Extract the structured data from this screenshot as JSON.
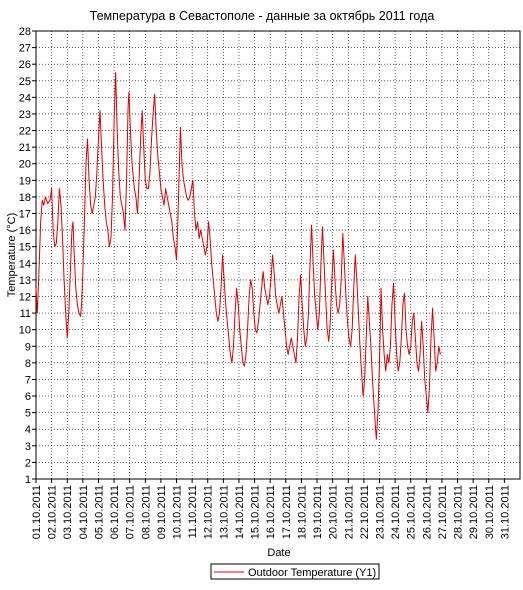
{
  "chart_data": {
    "type": "line",
    "title": "Температура в Севастополе - данные за октябрь 2011 года",
    "xlabel": "Date",
    "ylabel": "Temperature (°C)",
    "ylim": [
      1,
      28
    ],
    "xlim": [
      "01.10.2011",
      "31.10.2011 23:59"
    ],
    "grid": true,
    "legend_position": "bottom-center",
    "y_ticks": [
      1,
      2,
      3,
      4,
      5,
      6,
      7,
      8,
      9,
      10,
      11,
      12,
      13,
      14,
      15,
      16,
      17,
      18,
      19,
      20,
      21,
      22,
      23,
      24,
      25,
      26,
      27,
      28
    ],
    "x_tick_labels": [
      "01.10.2011",
      "02.10.2011",
      "03.10.2011",
      "04.10.2011",
      "05.10.2011",
      "06.10.2011",
      "07.10.2011",
      "08.10.2011",
      "09.10.2011",
      "10.10.2011",
      "11.10.2011",
      "12.10.2011",
      "13.10.2011",
      "14.10.2011",
      "15.10.2011",
      "16.10.2011",
      "17.10.2011",
      "18.10.2011",
      "19.10.2011",
      "20.10.2011",
      "21.10.2011",
      "22.10.2011",
      "23.10.2011",
      "24.10.2011",
      "25.10.2011",
      "26.10.2011",
      "27.10.2011",
      "28.10.2011",
      "29.10.2011",
      "30.10.2011",
      "31.10.2011"
    ],
    "series": [
      {
        "name": "Outdoor Temperature (Y1)",
        "color": "#dd0000",
        "x_unit": "day of October 2011",
        "points": [
          [
            1.0,
            12.5
          ],
          [
            1.08,
            11.0
          ],
          [
            1.17,
            13.0
          ],
          [
            1.3,
            16.5
          ],
          [
            1.4,
            17.8
          ],
          [
            1.5,
            17.5
          ],
          [
            1.6,
            18.0
          ],
          [
            1.75,
            17.6
          ],
          [
            1.9,
            17.8
          ],
          [
            2.0,
            18.5
          ],
          [
            2.1,
            16.0
          ],
          [
            2.2,
            15.0
          ],
          [
            2.3,
            15.2
          ],
          [
            2.4,
            16.5
          ],
          [
            2.5,
            18.5
          ],
          [
            2.6,
            17.5
          ],
          [
            2.7,
            15.5
          ],
          [
            2.8,
            13.0
          ],
          [
            2.9,
            11.0
          ],
          [
            3.0,
            9.5
          ],
          [
            3.1,
            11.0
          ],
          [
            3.2,
            13.5
          ],
          [
            3.3,
            16.0
          ],
          [
            3.37,
            16.5
          ],
          [
            3.45,
            14.5
          ],
          [
            3.55,
            12.5
          ],
          [
            3.65,
            11.5
          ],
          [
            3.75,
            11.0
          ],
          [
            3.85,
            10.8
          ],
          [
            3.92,
            11.5
          ],
          [
            4.0,
            13.5
          ],
          [
            4.1,
            16.5
          ],
          [
            4.2,
            20.0
          ],
          [
            4.3,
            21.5
          ],
          [
            4.4,
            19.0
          ],
          [
            4.5,
            17.5
          ],
          [
            4.6,
            17.0
          ],
          [
            4.7,
            17.5
          ],
          [
            4.8,
            18.0
          ],
          [
            4.9,
            19.5
          ],
          [
            5.0,
            21.5
          ],
          [
            5.1,
            23.2
          ],
          [
            5.2,
            21.0
          ],
          [
            5.3,
            19.0
          ],
          [
            5.4,
            17.5
          ],
          [
            5.5,
            16.5
          ],
          [
            5.6,
            16.0
          ],
          [
            5.7,
            15.0
          ],
          [
            5.8,
            15.5
          ],
          [
            5.9,
            18.0
          ],
          [
            6.0,
            22.5
          ],
          [
            6.1,
            25.5
          ],
          [
            6.2,
            22.0
          ],
          [
            6.3,
            19.5
          ],
          [
            6.4,
            18.0
          ],
          [
            6.5,
            17.5
          ],
          [
            6.6,
            17.0
          ],
          [
            6.7,
            16.0
          ],
          [
            6.8,
            19.0
          ],
          [
            6.9,
            23.5
          ],
          [
            6.95,
            24.3
          ],
          [
            7.05,
            22.0
          ],
          [
            7.15,
            20.0
          ],
          [
            7.3,
            18.5
          ],
          [
            7.4,
            18.0
          ],
          [
            7.5,
            17.0
          ],
          [
            7.6,
            19.0
          ],
          [
            7.7,
            21.5
          ],
          [
            7.8,
            23.2
          ],
          [
            7.9,
            21.0
          ],
          [
            8.0,
            19.0
          ],
          [
            8.1,
            18.5
          ],
          [
            8.2,
            18.5
          ],
          [
            8.3,
            19.5
          ],
          [
            8.4,
            21.5
          ],
          [
            8.5,
            23.0
          ],
          [
            8.6,
            24.2
          ],
          [
            8.7,
            22.0
          ],
          [
            8.8,
            20.5
          ],
          [
            8.9,
            19.5
          ],
          [
            9.0,
            18.5
          ],
          [
            9.1,
            18.0
          ],
          [
            9.2,
            17.5
          ],
          [
            9.3,
            18.5
          ],
          [
            9.4,
            18.0
          ],
          [
            9.5,
            17.5
          ],
          [
            9.6,
            17.0
          ],
          [
            9.7,
            16.5
          ],
          [
            9.8,
            15.5
          ],
          [
            9.9,
            15.0
          ],
          [
            10.0,
            14.2
          ],
          [
            10.1,
            17.0
          ],
          [
            10.2,
            20.5
          ],
          [
            10.25,
            22.2
          ],
          [
            10.35,
            20.0
          ],
          [
            10.45,
            19.0
          ],
          [
            10.55,
            18.5
          ],
          [
            10.65,
            18.0
          ],
          [
            10.75,
            17.8
          ],
          [
            10.85,
            18.0
          ],
          [
            10.95,
            18.5
          ],
          [
            11.05,
            19.0
          ],
          [
            11.15,
            17.0
          ],
          [
            11.25,
            16.0
          ],
          [
            11.35,
            16.5
          ],
          [
            11.45,
            15.5
          ],
          [
            11.55,
            16.0
          ],
          [
            11.65,
            15.5
          ],
          [
            11.75,
            15.0
          ],
          [
            11.85,
            14.5
          ],
          [
            11.95,
            15.0
          ],
          [
            12.05,
            16.5
          ],
          [
            12.15,
            15.5
          ],
          [
            12.25,
            14.0
          ],
          [
            12.35,
            13.0
          ],
          [
            12.45,
            12.0
          ],
          [
            12.55,
            11.0
          ],
          [
            12.65,
            10.5
          ],
          [
            12.75,
            11.0
          ],
          [
            12.85,
            12.5
          ],
          [
            12.95,
            14.5
          ],
          [
            13.05,
            13.0
          ],
          [
            13.15,
            11.5
          ],
          [
            13.25,
            10.5
          ],
          [
            13.35,
            9.5
          ],
          [
            13.45,
            8.5
          ],
          [
            13.55,
            8.0
          ],
          [
            13.65,
            9.0
          ],
          [
            13.75,
            11.0
          ],
          [
            13.85,
            12.5
          ],
          [
            13.95,
            11.5
          ],
          [
            14.05,
            10.0
          ],
          [
            14.15,
            9.0
          ],
          [
            14.25,
            8.0
          ],
          [
            14.35,
            7.8
          ],
          [
            14.45,
            8.5
          ],
          [
            14.55,
            10.0
          ],
          [
            14.65,
            12.0
          ],
          [
            14.75,
            13.0
          ],
          [
            14.85,
            12.5
          ],
          [
            14.95,
            11.0
          ],
          [
            15.05,
            10.0
          ],
          [
            15.15,
            9.8
          ],
          [
            15.25,
            10.5
          ],
          [
            15.35,
            11.5
          ],
          [
            15.45,
            12.5
          ],
          [
            15.55,
            13.5
          ],
          [
            15.65,
            12.5
          ],
          [
            15.75,
            12.0
          ],
          [
            15.85,
            11.5
          ],
          [
            15.95,
            12.0
          ],
          [
            16.05,
            13.0
          ],
          [
            16.15,
            14.5
          ],
          [
            16.25,
            13.5
          ],
          [
            16.35,
            12.0
          ],
          [
            16.45,
            11.5
          ],
          [
            16.55,
            11.0
          ],
          [
            16.65,
            11.5
          ],
          [
            16.75,
            12.0
          ],
          [
            16.85,
            11.0
          ],
          [
            16.95,
            10.0
          ],
          [
            17.05,
            9.0
          ],
          [
            17.15,
            8.5
          ],
          [
            17.25,
            9.0
          ],
          [
            17.35,
            9.5
          ],
          [
            17.45,
            9.0
          ],
          [
            17.55,
            8.5
          ],
          [
            17.65,
            8.0
          ],
          [
            17.75,
            9.5
          ],
          [
            17.85,
            12.0
          ],
          [
            17.95,
            13.3
          ],
          [
            18.05,
            11.5
          ],
          [
            18.15,
            10.0
          ],
          [
            18.25,
            9.0
          ],
          [
            18.35,
            9.5
          ],
          [
            18.45,
            11.0
          ],
          [
            18.55,
            14.0
          ],
          [
            18.65,
            16.3
          ],
          [
            18.75,
            14.0
          ],
          [
            18.85,
            12.0
          ],
          [
            18.95,
            11.0
          ],
          [
            19.05,
            10.0
          ],
          [
            19.15,
            11.0
          ],
          [
            19.25,
            14.0
          ],
          [
            19.35,
            16.2
          ],
          [
            19.45,
            14.0
          ],
          [
            19.55,
            12.0
          ],
          [
            19.65,
            10.0
          ],
          [
            19.75,
            9.3
          ],
          [
            19.85,
            10.5
          ],
          [
            19.95,
            13.0
          ],
          [
            20.05,
            14.8
          ],
          [
            20.15,
            13.0
          ],
          [
            20.25,
            11.5
          ],
          [
            20.35,
            11.0
          ],
          [
            20.45,
            11.5
          ],
          [
            20.55,
            13.0
          ],
          [
            20.65,
            15.8
          ],
          [
            20.75,
            14.0
          ],
          [
            20.85,
            12.0
          ],
          [
            20.95,
            10.5
          ],
          [
            21.05,
            9.5
          ],
          [
            21.15,
            9.0
          ],
          [
            21.25,
            10.0
          ],
          [
            21.35,
            12.5
          ],
          [
            21.45,
            14.5
          ],
          [
            21.55,
            13.0
          ],
          [
            21.65,
            11.0
          ],
          [
            21.75,
            9.0
          ],
          [
            21.85,
            7.5
          ],
          [
            21.95,
            6.0
          ],
          [
            22.05,
            7.0
          ],
          [
            22.15,
            9.5
          ],
          [
            22.25,
            12.0
          ],
          [
            22.35,
            10.5
          ],
          [
            22.45,
            9.0
          ],
          [
            22.55,
            7.0
          ],
          [
            22.65,
            5.5
          ],
          [
            22.75,
            4.0
          ],
          [
            22.8,
            3.4
          ],
          [
            22.9,
            5.0
          ],
          [
            23.0,
            8.0
          ],
          [
            23.1,
            12.5
          ],
          [
            23.2,
            10.0
          ],
          [
            23.3,
            8.5
          ],
          [
            23.4,
            7.5
          ],
          [
            23.5,
            8.5
          ],
          [
            23.6,
            8.0
          ],
          [
            23.7,
            9.0
          ],
          [
            23.8,
            11.5
          ],
          [
            23.9,
            12.8
          ],
          [
            24.0,
            10.5
          ],
          [
            24.1,
            8.5
          ],
          [
            24.2,
            7.5
          ],
          [
            24.3,
            8.0
          ],
          [
            24.4,
            9.5
          ],
          [
            24.5,
            11.5
          ],
          [
            24.6,
            12.2
          ],
          [
            24.7,
            10.0
          ],
          [
            24.8,
            9.0
          ],
          [
            24.9,
            8.5
          ],
          [
            25.0,
            9.0
          ],
          [
            25.1,
            10.5
          ],
          [
            25.2,
            11.0
          ],
          [
            25.3,
            9.5
          ],
          [
            25.4,
            8.0
          ],
          [
            25.5,
            7.5
          ],
          [
            25.6,
            8.5
          ],
          [
            25.7,
            10.5
          ],
          [
            25.8,
            9.0
          ],
          [
            25.9,
            7.0
          ],
          [
            26.0,
            6.0
          ],
          [
            26.1,
            5.0
          ],
          [
            26.2,
            6.5
          ],
          [
            26.3,
            9.5
          ],
          [
            26.4,
            11.3
          ],
          [
            26.5,
            9.5
          ],
          [
            26.6,
            7.5
          ],
          [
            26.7,
            8.0
          ],
          [
            26.8,
            9.0
          ],
          [
            26.9,
            8.5
          ]
        ]
      }
    ]
  }
}
